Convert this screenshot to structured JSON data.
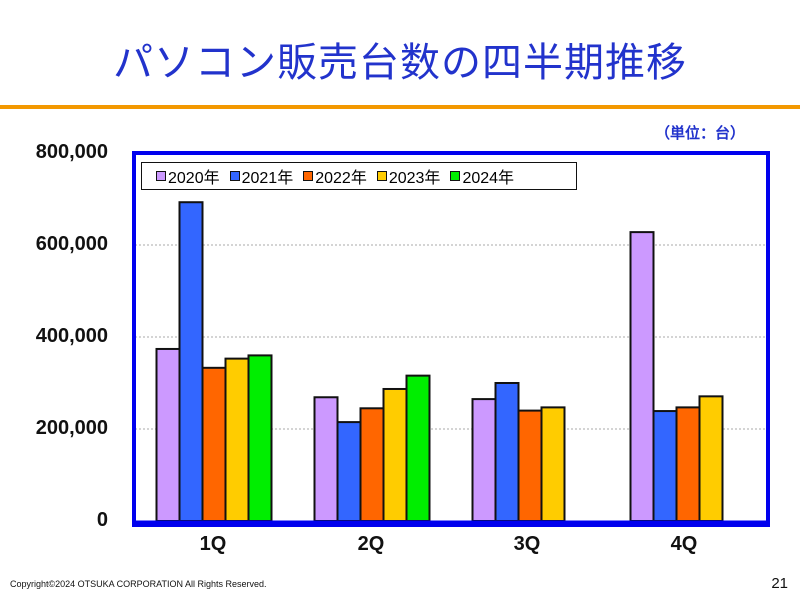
{
  "slide": {
    "title": "パソコン販売台数の四半期推移",
    "unit_label": "（単位：台）",
    "copyright": "Copyright©2024 OTSUKA CORPORATION All Rights Reserved.",
    "page_number": "21",
    "accent_color": "#f39800",
    "title_color": "#2233cc"
  },
  "chart_data": {
    "type": "bar",
    "categories": [
      "1Q",
      "2Q",
      "3Q",
      "4Q"
    ],
    "series": [
      {
        "name": "2020年",
        "color": "#cc99ff",
        "values": [
          374000,
          269000,
          265000,
          628000
        ]
      },
      {
        "name": "2021年",
        "color": "#3366ff",
        "values": [
          693000,
          215000,
          300000,
          239000
        ]
      },
      {
        "name": "2022年",
        "color": "#ff6600",
        "values": [
          333000,
          245000,
          240000,
          247000
        ]
      },
      {
        "name": "2023年",
        "color": "#ffcc00",
        "values": [
          353000,
          287000,
          247000,
          271000
        ]
      },
      {
        "name": "2024年",
        "color": "#00ee00",
        "values": [
          360000,
          316000,
          null,
          null
        ]
      }
    ],
    "yticks": [
      "0",
      "200,000",
      "400,000",
      "600,000",
      "800,000"
    ],
    "ylim": [
      0,
      800000
    ],
    "grid": true,
    "legend": "top-left",
    "frame_color": "#0000ee"
  }
}
